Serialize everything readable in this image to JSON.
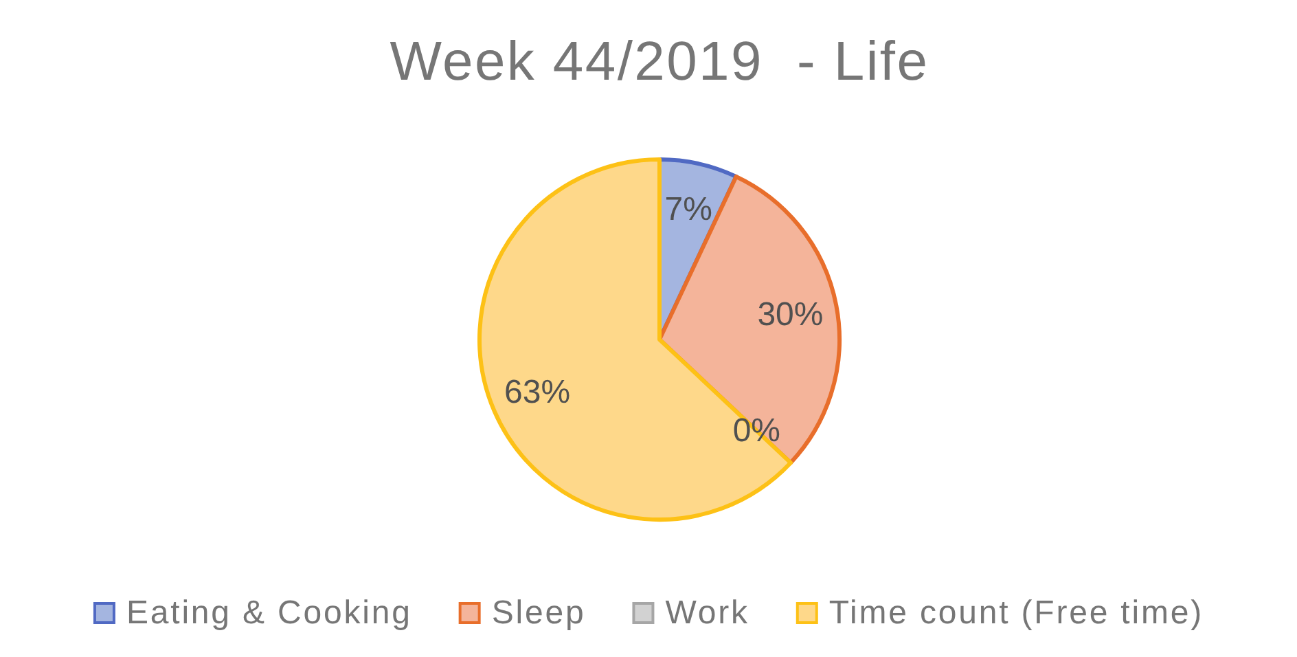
{
  "chart_data": {
    "type": "pie",
    "title": "Week 44/2019  - Life",
    "categories": [
      "Eating & Cooking",
      "Sleep",
      "Work",
      "Time count (Free time)"
    ],
    "values": [
      7,
      30,
      0,
      63
    ],
    "colors": [
      "#a4b5e0",
      "#f4b49a",
      "#d2d2d2",
      "#fed88a"
    ],
    "value_labels": [
      "7%",
      "30%",
      "0%",
      "63%"
    ],
    "legend": "bottom"
  }
}
